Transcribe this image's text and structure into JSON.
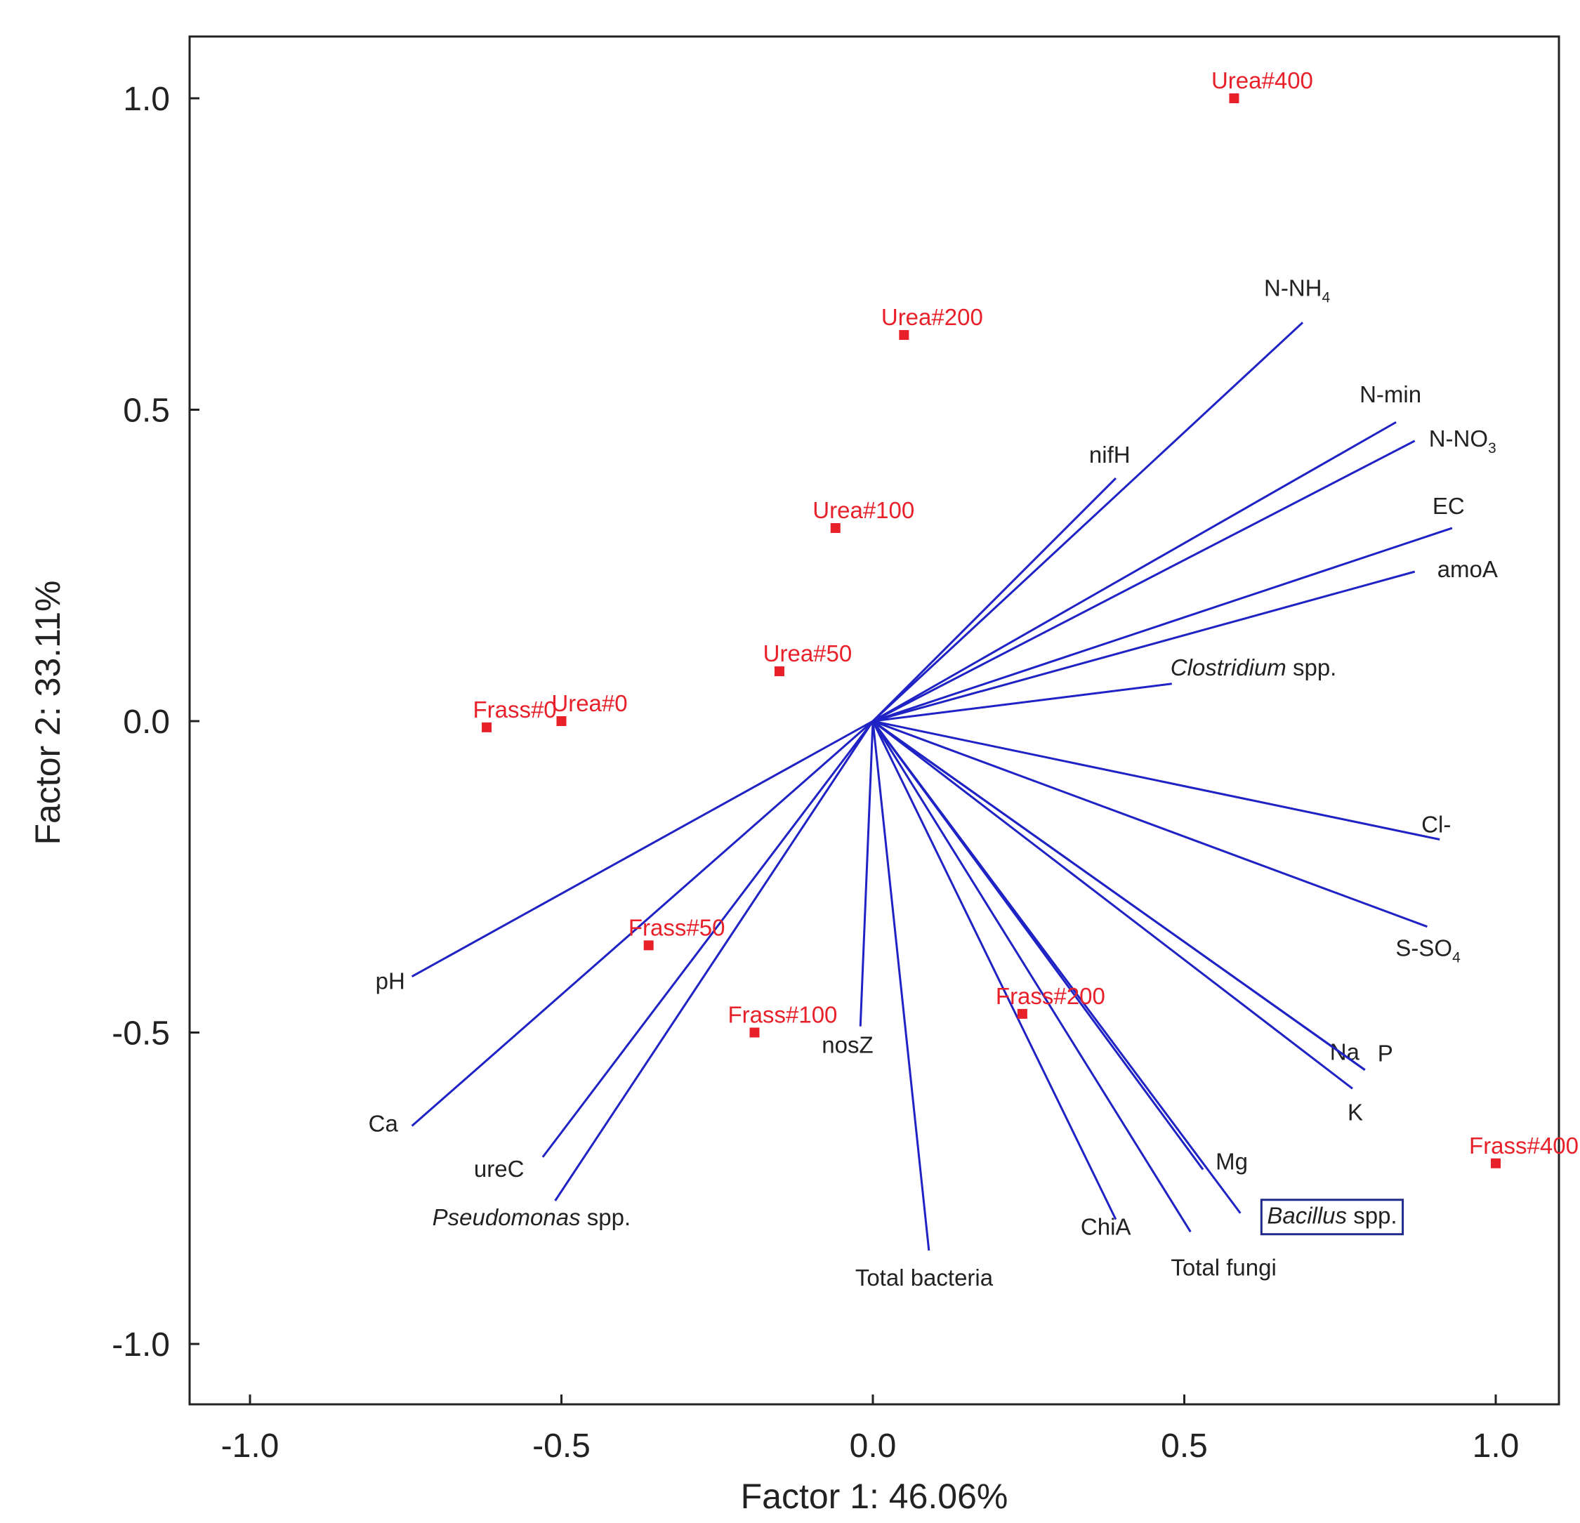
{
  "chart_data": {
    "type": "scatter",
    "subtype": "pca-biplot",
    "title": "",
    "xlabel": "Factor 1: 46.06%",
    "ylabel": "Factor 2: 33.11%",
    "xlim": [
      -1.1,
      1.1
    ],
    "ylim": [
      -1.1,
      1.1
    ],
    "xticks": [
      -1.0,
      -0.5,
      0.0,
      0.5,
      1.0
    ],
    "yticks": [
      1.0,
      0.5,
      0.0,
      -0.5,
      -1.0
    ],
    "xtick_labels": [
      "-1.0",
      "-0.5",
      "0.0",
      "0.5",
      "1.0"
    ],
    "ytick_labels": [
      "1.0",
      "0.5",
      "0.0",
      "-0.5",
      "-1.0"
    ],
    "grid": false,
    "vector_color": "#1f22c4",
    "point_color": "#e8202a",
    "vectors": [
      {
        "label": "N-NH",
        "sub": "4",
        "x": 0.69,
        "y": 0.64
      },
      {
        "label": "N-min",
        "x": 0.84,
        "y": 0.48
      },
      {
        "label": "N-NO",
        "sub": "3",
        "x": 0.87,
        "y": 0.45
      },
      {
        "label": "nifH",
        "x": 0.39,
        "y": 0.39
      },
      {
        "label": "EC",
        "x": 0.93,
        "y": 0.31
      },
      {
        "label": "amoA",
        "x": 0.87,
        "y": 0.24
      },
      {
        "label": "Clostridium",
        "suffix": " spp.",
        "italic": true,
        "x": 0.48,
        "y": 0.06
      },
      {
        "label": "Cl-",
        "x": 0.91,
        "y": -0.19
      },
      {
        "label": "S-SO",
        "sub": "4",
        "x": 0.89,
        "y": -0.33
      },
      {
        "label": "Na",
        "x": 0.79,
        "y": -0.56
      },
      {
        "label": "P",
        "x": 0.79,
        "y": -0.56
      },
      {
        "label": "K",
        "x": 0.77,
        "y": -0.59
      },
      {
        "label": "Mg",
        "x": 0.53,
        "y": -0.72
      },
      {
        "label": "Bacillus",
        "suffix": " spp.",
        "italic": true,
        "boxed": true,
        "x": 0.59,
        "y": -0.79
      },
      {
        "label": "Total fungi",
        "x": 0.51,
        "y": -0.82
      },
      {
        "label": "ChiA",
        "x": 0.39,
        "y": -0.8
      },
      {
        "label": "Total bacteria",
        "x": 0.09,
        "y": -0.85
      },
      {
        "label": "nosZ",
        "x": -0.02,
        "y": -0.49
      },
      {
        "label": "Pseudomonas",
        "suffix": " spp.",
        "italic": true,
        "x": -0.51,
        "y": -0.77
      },
      {
        "label": "ureC",
        "x": -0.53,
        "y": -0.7
      },
      {
        "label": "Ca",
        "x": -0.74,
        "y": -0.65
      },
      {
        "label": "pH",
        "x": -0.74,
        "y": -0.41
      }
    ],
    "points": [
      {
        "label": "Urea#400",
        "x": 0.58,
        "y": 1.0
      },
      {
        "label": "Urea#200",
        "x": 0.05,
        "y": 0.62
      },
      {
        "label": "Urea#100",
        "x": -0.06,
        "y": 0.31
      },
      {
        "label": "Urea#50",
        "x": -0.15,
        "y": 0.08
      },
      {
        "label": "Urea#0",
        "x": -0.5,
        "y": 0.0
      },
      {
        "label": "Frass#0",
        "x": -0.62,
        "y": -0.01
      },
      {
        "label": "Frass#50",
        "x": -0.36,
        "y": -0.36
      },
      {
        "label": "Frass#100",
        "x": -0.19,
        "y": -0.5
      },
      {
        "label": "Frass#200",
        "x": 0.24,
        "y": -0.47
      },
      {
        "label": "Frass#400",
        "x": 1.0,
        "y": -0.71
      }
    ]
  }
}
